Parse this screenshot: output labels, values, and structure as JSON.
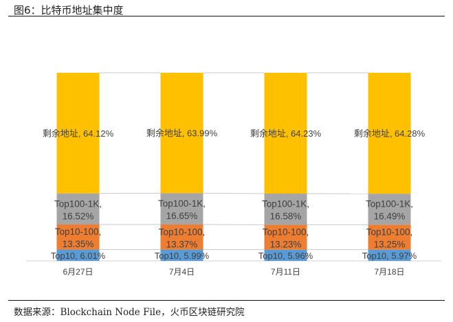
{
  "chart_data": {
    "type": "bar",
    "stacked": true,
    "title": "图6：比特币地址集中度",
    "source": "数据来源：Blockchain Node File，火币区块链研究院",
    "categories": [
      "6月27日",
      "7月4日",
      "7月11日",
      "7月18日"
    ],
    "series": [
      {
        "name": "Top10",
        "color": "#5B9BD5",
        "values": [
          6.01,
          5.99,
          5.96,
          5.97
        ]
      },
      {
        "name": "Top10-100",
        "color": "#ED7D31",
        "values": [
          13.35,
          13.37,
          13.23,
          13.25
        ]
      },
      {
        "name": "Top100-1K",
        "color": "#A5A5A5",
        "values": [
          16.52,
          16.65,
          16.58,
          16.49
        ]
      },
      {
        "name": "剩余地址",
        "color": "#FFC000",
        "values": [
          64.12,
          63.99,
          64.23,
          64.28
        ]
      }
    ],
    "ylim": [
      0,
      100
    ],
    "unit": "%"
  }
}
